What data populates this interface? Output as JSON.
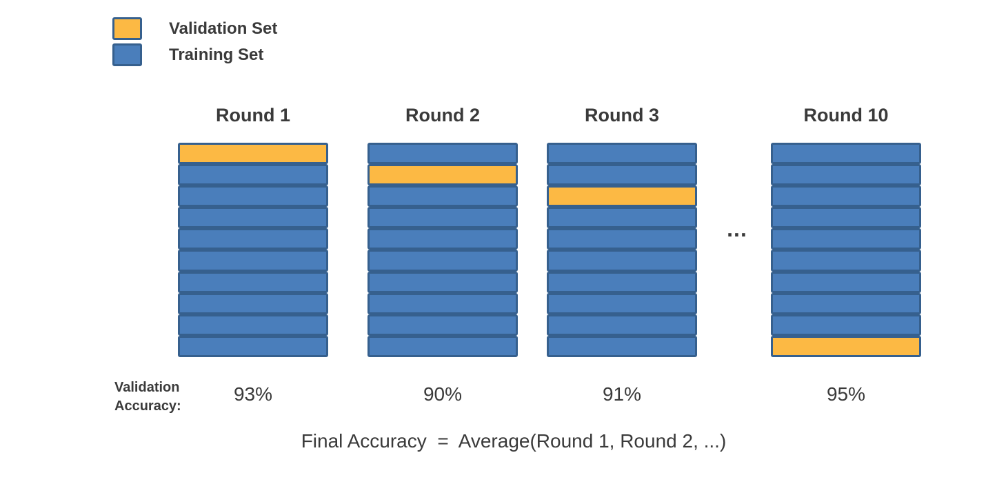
{
  "colors": {
    "validation_fill": "#FCB944",
    "training_fill": "#4A7EBB",
    "fold_border": "#36608E",
    "text": "#3A3A3A"
  },
  "legend": {
    "items": [
      {
        "label": "Validation Set",
        "swatch": "validation-swatch"
      },
      {
        "label": "Training Set",
        "swatch": "training-swatch"
      }
    ]
  },
  "rounds": [
    {
      "title": "Round 1",
      "folds": 10,
      "validation_fold": 1,
      "accuracy": "93%"
    },
    {
      "title": "Round 2",
      "folds": 10,
      "validation_fold": 2,
      "accuracy": "90%"
    },
    {
      "title": "Round 3",
      "folds": 10,
      "validation_fold": 3,
      "accuracy": "91%"
    },
    {
      "title": "Round 10",
      "folds": 10,
      "validation_fold": 10,
      "accuracy": "95%"
    }
  ],
  "ellipsis": "...",
  "accuracy_label": {
    "line1": "Validation",
    "line2": "Accuracy:"
  },
  "final_formula": "Final Accuracy  =  Average(Round 1, Round 2, ...)"
}
